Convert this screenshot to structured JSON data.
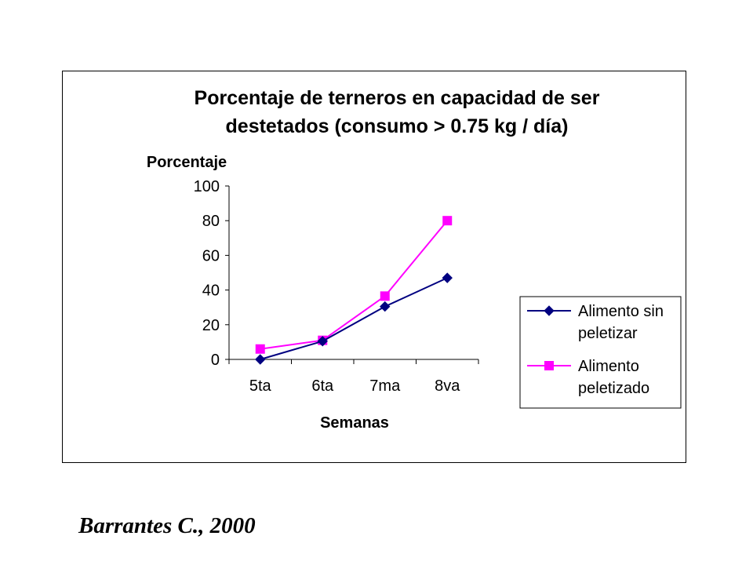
{
  "citation": "Barrantes C., 2000",
  "chart_data": {
    "type": "line",
    "title_lines": [
      "Porcentaje de terneros en capacidad de ser",
      "destetados (consumo > 0.75 kg / día)"
    ],
    "xlabel": "Semanas",
    "ylabel": "Porcentaje",
    "categories": [
      "5ta",
      "6ta",
      "7ma",
      "8va"
    ],
    "ylim": [
      0,
      100
    ],
    "yticks": [
      0,
      20,
      40,
      60,
      80,
      100
    ],
    "legend_position": "right",
    "series": [
      {
        "name_lines": [
          "Alimento sin",
          "peletizar"
        ],
        "values": [
          0,
          10.5,
          30.5,
          47
        ],
        "color": "#000080",
        "marker": "diamond"
      },
      {
        "name_lines": [
          "Alimento",
          "peletizado"
        ],
        "values": [
          6,
          11,
          36.5,
          80
        ],
        "color": "#ff00ff",
        "marker": "square"
      }
    ]
  }
}
